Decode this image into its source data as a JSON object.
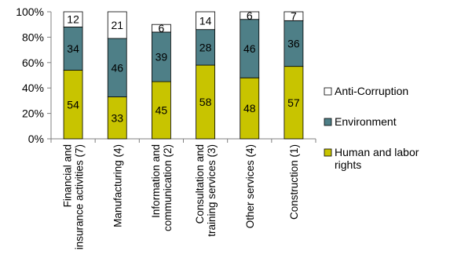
{
  "chart_data": {
    "type": "bar",
    "stacked": true,
    "percent_stacked": true,
    "categories": [
      [
        "Financial and",
        "insurance activities (7)"
      ],
      [
        "Manufacturing (4)"
      ],
      [
        "Information and",
        "communication (2)"
      ],
      [
        "Consultation and",
        "training services (3)"
      ],
      [
        "Other services (4)"
      ],
      [
        "Construction (1)"
      ]
    ],
    "series": [
      {
        "name": "Human and labor rights",
        "legend_lines": [
          "Human and labor",
          "rights"
        ],
        "color": "#c8c400",
        "values": [
          54,
          33,
          45,
          58,
          48,
          57
        ]
      },
      {
        "name": "Environment",
        "legend_lines": [
          "Environment"
        ],
        "color": "#4e7f87",
        "values": [
          34,
          46,
          39,
          28,
          46,
          36
        ]
      },
      {
        "name": "Anti-Corruption",
        "legend_lines": [
          "Anti-Corruption"
        ],
        "color": "#ffffff",
        "values": [
          12,
          21,
          6,
          14,
          6,
          7
        ]
      }
    ],
    "yticks": [
      "0%",
      "20%",
      "40%",
      "60%",
      "80%",
      "100%"
    ],
    "ylim": [
      0,
      100
    ],
    "legend_position": "right",
    "grid": false,
    "title": "",
    "xlabel": "",
    "ylabel": ""
  }
}
